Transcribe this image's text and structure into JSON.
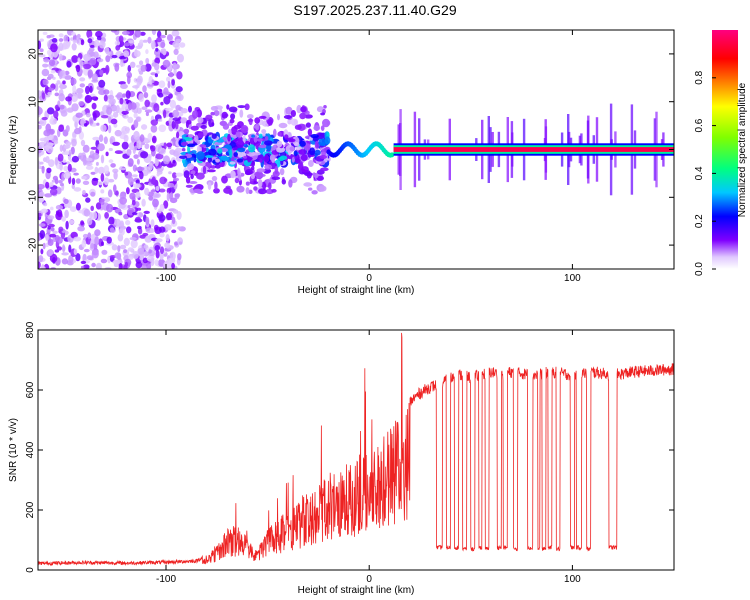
{
  "title": "S197.2025.237.11.40.G29",
  "chart_data": [
    {
      "type": "heatmap",
      "title": "S197.2025.237.11.40.G29",
      "xlabel": "Height of straight line (km)",
      "ylabel": "Frequency (Hz)",
      "xlim": [
        -163,
        150
      ],
      "ylim": [
        -25,
        25
      ],
      "x_ticks": [
        -100,
        0,
        100
      ],
      "x_tick_labels": [
        "-100",
        "0",
        "100"
      ],
      "y_ticks": [
        -20,
        -10,
        0,
        10,
        20
      ],
      "y_tick_labels": [
        "-20",
        "-10",
        "0",
        "10",
        "20"
      ],
      "colorbar": {
        "label": "Normalized spectral amplitude",
        "range": [
          0,
          1
        ],
        "ticks": [
          0,
          0.2,
          0.4,
          0.6,
          0.8
        ],
        "tick_labels": [
          "0.0",
          "0.2",
          "0.4",
          "0.6",
          "0.8"
        ],
        "colors": [
          "#ffffff",
          "#d8b8ff",
          "#8000ff",
          "#0000ff",
          "#00c8ff",
          "#00ff80",
          "#80ff00",
          "#ffff00",
          "#ff8000",
          "#ff0000",
          "#ff0080"
        ]
      },
      "features": [
        {
          "region": "noise",
          "x_range": [
            -163,
            -92
          ],
          "freq_range": [
            -25,
            25
          ],
          "amplitude": 0.08
        },
        {
          "region": "onset",
          "x_range": [
            -92,
            -20
          ],
          "freq_range": [
            -9,
            9
          ],
          "amplitude": 0.3
        },
        {
          "region": "transition",
          "x_range": [
            -20,
            12
          ],
          "freq_range": [
            -3,
            3
          ],
          "amplitude": 0.45
        },
        {
          "region": "tracked",
          "x_range": [
            12,
            150
          ],
          "freq_center": 0,
          "amplitude": 0.95
        }
      ]
    },
    {
      "type": "line",
      "xlabel": "Height of straight line (km)",
      "ylabel": "SNR (10 * v/v)",
      "xlim": [
        -163,
        150
      ],
      "ylim": [
        0,
        800
      ],
      "x_ticks": [
        -100,
        0,
        100
      ],
      "x_tick_labels": [
        "-100",
        "0",
        "100"
      ],
      "y_ticks": [
        0,
        200,
        400,
        600,
        800
      ],
      "y_tick_labels": [
        "0",
        "200",
        "400",
        "600",
        "800"
      ],
      "color": "#ee2222",
      "series": [
        {
          "name": "SNR",
          "x": [
            -163,
            -140,
            -120,
            -100,
            -85,
            -80,
            -75,
            -70,
            -65,
            -60,
            -55,
            -50,
            -45,
            -40,
            -35,
            -30,
            -25,
            -20,
            -15,
            -10,
            -5,
            0,
            5,
            10,
            15,
            20,
            25,
            30,
            35,
            40,
            45,
            50,
            55,
            60,
            65,
            70,
            80,
            90,
            100,
            110,
            120,
            130,
            140,
            150
          ],
          "values": [
            22,
            25,
            23,
            26,
            30,
            50,
            90,
            140,
            150,
            110,
            80,
            140,
            170,
            200,
            230,
            260,
            290,
            330,
            340,
            360,
            370,
            400,
            430,
            470,
            520,
            560,
            590,
            610,
            620,
            640,
            650,
            640,
            650,
            660,
            650,
            660,
            650,
            660,
            650,
            660,
            650,
            660,
            665,
            670
          ]
        }
      ],
      "dropouts": [
        {
          "x": 33,
          "value": 75
        },
        {
          "x": 38,
          "value": 75
        },
        {
          "x": 42,
          "value": 75
        },
        {
          "x": 46,
          "value": 70
        },
        {
          "x": 50,
          "value": 70
        },
        {
          "x": 54,
          "value": 75
        },
        {
          "x": 57,
          "value": 70
        },
        {
          "x": 63,
          "value": 75
        },
        {
          "x": 66,
          "value": 75
        },
        {
          "x": 71,
          "value": 70
        },
        {
          "x": 78,
          "value": 75
        },
        {
          "x": 83,
          "value": 70
        },
        {
          "x": 85,
          "value": 70
        },
        {
          "x": 88,
          "value": 75
        },
        {
          "x": 92,
          "value": 70
        },
        {
          "x": 99,
          "value": 75
        },
        {
          "x": 102,
          "value": 75
        },
        {
          "x": 107,
          "value": 70
        },
        {
          "x": 118,
          "value": 75
        }
      ],
      "dropout_widths_km": [
        3,
        2,
        2,
        2,
        2,
        1.5,
        2,
        2,
        2,
        2,
        2.5,
        1,
        2,
        2,
        2,
        2,
        2.5,
        2,
        4
      ]
    }
  ]
}
